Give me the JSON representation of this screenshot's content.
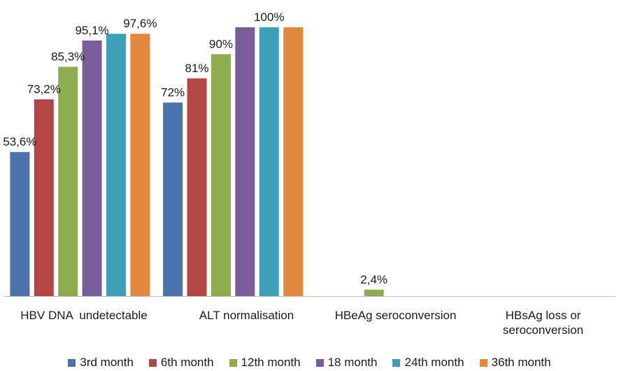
{
  "chart_data": {
    "type": "bar",
    "categories": [
      "HBV DNA  undetectable",
      "ALT normalisation",
      "HBeAg seroconversion",
      "HBsAg loss or seroconversion"
    ],
    "series": [
      {
        "name": "3rd month",
        "color": "#4a73ac",
        "values": [
          53.6,
          72,
          null,
          null
        ],
        "labels": [
          "53,6%",
          "72%",
          "",
          ""
        ]
      },
      {
        "name": "6th month",
        "color": "#b54444",
        "values": [
          73.2,
          81,
          null,
          null
        ],
        "labels": [
          "73,2%",
          "81%",
          "",
          ""
        ]
      },
      {
        "name": "12th month",
        "color": "#8dab4f",
        "values": [
          85.3,
          90,
          2.4,
          null
        ],
        "labels": [
          "85,3%",
          "90%",
          "2,4%",
          ""
        ]
      },
      {
        "name": "18 month",
        "color": "#7a5c9a",
        "values": [
          95.1,
          100,
          null,
          null
        ],
        "labels": [
          "95,1%",
          "",
          "",
          ""
        ]
      },
      {
        "name": "24th month",
        "color": "#3da0b8",
        "values": [
          97.6,
          100,
          null,
          null
        ],
        "labels": [
          "",
          "100%",
          "",
          ""
        ]
      },
      {
        "name": "36th month",
        "color": "#e1893f",
        "values": [
          97.6,
          100,
          null,
          null
        ],
        "labels": [
          "97,6%",
          "",
          "",
          ""
        ]
      }
    ],
    "ylim": [
      0,
      100
    ],
    "grid": false,
    "legend_position": "bottom"
  }
}
